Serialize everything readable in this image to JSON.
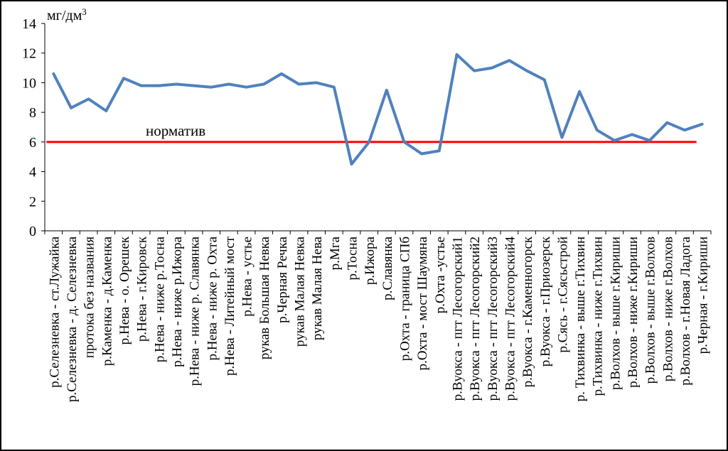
{
  "chart_data": {
    "type": "line",
    "ylabel": "мг/дм",
    "ylabel_superscript": "3",
    "ylim": [
      0,
      14
    ],
    "yticks": [
      0,
      2,
      4,
      6,
      8,
      10,
      12,
      14
    ],
    "grid": false,
    "categories": [
      "р.Селезневка - ст.Лужайка",
      "р.Селезневка - д. Селезневка",
      "протока без названия",
      "р.Каменка - д.Каменка",
      "р.Нева - о. Орешек",
      "р.Нева - г.Кировск",
      "р.Нева - ниже р.Тосна",
      "р.Нева - ниже р.Ижора",
      "р.Нева - ниже р. Славянка",
      "р.Нева - ниже р. Охта",
      "р.Нева - Литейный мост",
      "р.Нева - устье",
      "рукав Большая Невка",
      "р.Черная Речка",
      "рукав Малая Невка",
      "рукав Малая Нева",
      "р.Мга",
      "р.Тосна",
      "р.Ижора",
      "р.Славянка",
      "р.Охта - граница СПб",
      "р.Охта - мост Шаумяна",
      "р.Охта -устье",
      "р.Вуокса - пгт Лесогорский1",
      "р.Вуокса - пгт Лесогорский2",
      "р.Вуокса - пгт Лесогорский3",
      "р.Вуокса - пгт Лесогорский4",
      "р.Вуокса - г.Каменногорск",
      "р.Вуокса - г.Приозерск",
      "р.Сясь - г.Сясьстрой",
      "р. Тихвинка - выше г.Тихвин",
      "р.Тихвинка - ниже г.Тихвин",
      "р.Волхов - выше г.Кириши",
      "р.Волхов - ниже г.Кириши",
      "р.Волхов - выше г.Волхов",
      "р.Волхов - ниже г.Волхов",
      "р.Волхов - г.Новая Ладога",
      "р.Черная - г.Кириши"
    ],
    "series": [
      {
        "color": "#4f81bd",
        "values": [
          10.6,
          8.3,
          8.9,
          8.1,
          10.3,
          9.8,
          9.8,
          9.9,
          9.8,
          9.7,
          9.9,
          9.7,
          9.9,
          10.6,
          9.9,
          10.0,
          9.7,
          4.5,
          6.0,
          9.5,
          6.0,
          5.2,
          5.4,
          11.9,
          10.8,
          11.0,
          11.5,
          10.8,
          10.2,
          6.3,
          9.4,
          6.8,
          6.1,
          6.5,
          6.1,
          7.3,
          6.8,
          7.2
        ]
      }
    ],
    "reference_line": {
      "label": "норматив",
      "value": 6,
      "color": "#ff0000"
    }
  }
}
